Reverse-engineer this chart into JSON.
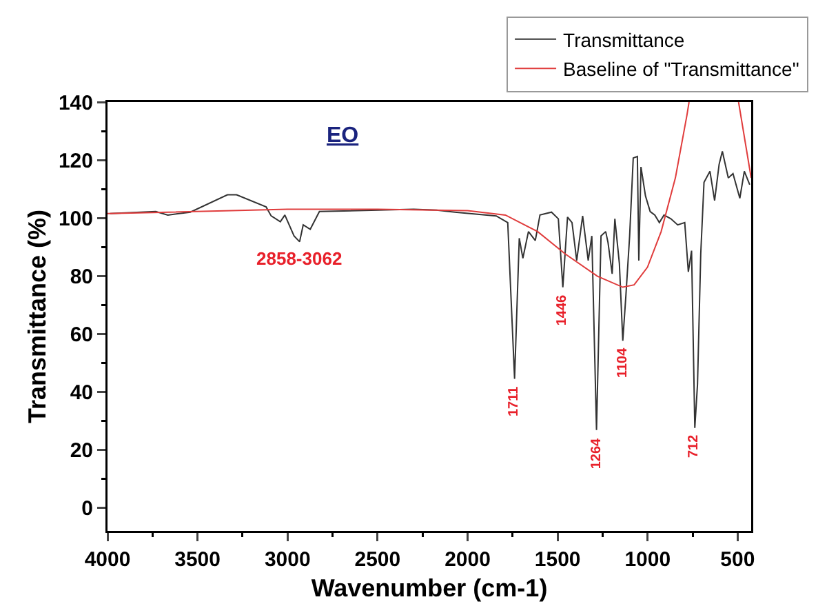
{
  "chart_data": {
    "type": "line",
    "title": "EO",
    "xlabel": "Wavenumber (cm-1)",
    "ylabel": "Transmittance (%)",
    "xlim": [
      4000,
      425
    ],
    "xticks": [
      4000,
      3500,
      3000,
      2500,
      2000,
      1500,
      1000,
      500
    ],
    "ylim": [
      -8,
      140
    ],
    "yticks": [
      0,
      20,
      40,
      60,
      80,
      100,
      120,
      140
    ],
    "grid": false,
    "legend": "top right",
    "marker": "none",
    "line_style": "solid",
    "series": [
      {
        "name": "Transmittance",
        "color": "#333333",
        "x": [
          3985,
          3732,
          3665,
          3540,
          3334,
          3283,
          3119,
          3091,
          3040,
          3015,
          2964,
          2933,
          2913,
          2874,
          2823,
          2300,
          2172,
          2070,
          1841,
          1777,
          1739,
          1713,
          1693,
          1662,
          1624,
          1598,
          1534,
          1496,
          1471,
          1445,
          1420,
          1394,
          1361,
          1330,
          1310,
          1284,
          1259,
          1233,
          1220,
          1197,
          1182,
          1157,
          1138,
          1121,
          1100,
          1080,
          1057,
          1049,
          1037,
          1012,
          986,
          960,
          935,
          909,
          871,
          833,
          794,
          774,
          756,
          738,
          723,
          705,
          687,
          654,
          628,
          603,
          585,
          552,
          526,
          488,
          463,
          433
        ],
        "values": [
          101.5,
          102.2,
          101,
          102,
          108,
          108,
          103.8,
          100.7,
          98.7,
          101,
          93.8,
          91.8,
          97.6,
          96.1,
          102.2,
          103,
          102.7,
          102,
          100.7,
          98.4,
          44.5,
          93,
          86.1,
          95.3,
          92.2,
          101,
          102,
          99.7,
          76.1,
          100.3,
          98.4,
          85.3,
          100.7,
          85.3,
          93.8,
          26.8,
          93.8,
          95.3,
          91.5,
          80.7,
          99.7,
          84.3,
          57.6,
          73,
          93.8,
          120.7,
          121.2,
          85.3,
          117.6,
          107.6,
          102.2,
          101,
          98.4,
          101,
          99.7,
          97.6,
          98.4,
          81.4,
          88.7,
          27.5,
          42.6,
          87.6,
          112.3,
          116.1,
          106,
          118.5,
          123,
          113.8,
          115.3,
          106.8,
          116.1,
          111.5
        ]
      },
      {
        "name": "Baseline of \"Transmittance\"",
        "color": "#e03c3c",
        "x": [
          4000,
          3000,
          2500,
          2000,
          1790,
          1611,
          1458,
          1279,
          1138,
          1075,
          1001,
          925,
          846,
          782,
          770,
          620,
          495,
          425
        ],
        "values": [
          101.5,
          103,
          103,
          102.5,
          101,
          95.3,
          87.6,
          79.9,
          76.1,
          76.9,
          83,
          95.3,
          113.8,
          135.4,
          140,
          null,
          140,
          113.8
        ]
      }
    ],
    "annotations": [
      {
        "text": "2858-3062",
        "x": 2933,
        "y": 91.8
      },
      {
        "text": "1711",
        "x": 1739,
        "y": 44.5
      },
      {
        "text": "1446",
        "x": 1471,
        "y": 76.1
      },
      {
        "text": "1264",
        "x": 1284,
        "y": 26.8
      },
      {
        "text": "1104",
        "x": 1138,
        "y": 57.6
      },
      {
        "text": "712",
        "x": 738,
        "y": 27.5
      }
    ]
  }
}
